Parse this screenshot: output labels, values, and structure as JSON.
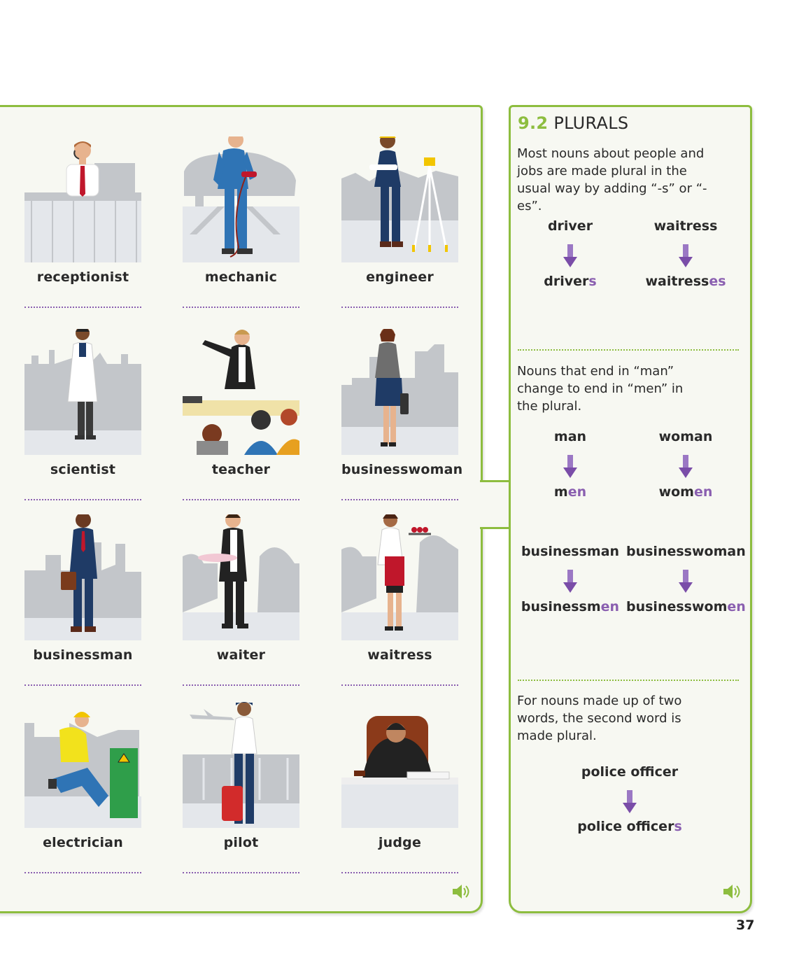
{
  "jobs": [
    {
      "label": "receptionist"
    },
    {
      "label": "mechanic"
    },
    {
      "label": "engineer"
    },
    {
      "label": "scientist"
    },
    {
      "label": "teacher"
    },
    {
      "label": "businesswoman"
    },
    {
      "label": "businessman"
    },
    {
      "label": "waiter"
    },
    {
      "label": "waitress"
    },
    {
      "label": "electrician"
    },
    {
      "label": "pilot"
    },
    {
      "label": "judge"
    }
  ],
  "section": {
    "number": "9.2",
    "title": "PLURALS",
    "intro": "Most nouns about people and jobs are made plural in the usual way by adding “-s” or “-es”.",
    "pairs1": [
      {
        "singular": "driver",
        "stem": "driver",
        "suffix": "s"
      },
      {
        "singular": "waitress",
        "stem": "waitress",
        "suffix": "es"
      }
    ],
    "man_rule": "Nouns that end in “man” change to end in “men” in the plural.",
    "pairs2": [
      {
        "singular": "man",
        "stem": "m",
        "suffix": "en"
      },
      {
        "singular": "woman",
        "stem": "wom",
        "suffix": "en"
      }
    ],
    "pairs3": [
      {
        "singular": "businessman",
        "stem": "businessm",
        "suffix": "en"
      },
      {
        "singular": "businesswoman",
        "stem": "businesswom",
        "suffix": "en"
      }
    ],
    "compound_rule": "For nouns made up of two words, the second word is made plural.",
    "pair4": {
      "singular": "police officer",
      "stem": "police officer",
      "suffix": "s"
    }
  },
  "page_number": "37",
  "icons": {
    "arrow": "down-arrow-icon",
    "speaker": "speaker-icon"
  },
  "colors": {
    "green": "#8dbd3f",
    "purple": "#8a5fb0",
    "panel_bg": "#f7f8f2"
  }
}
